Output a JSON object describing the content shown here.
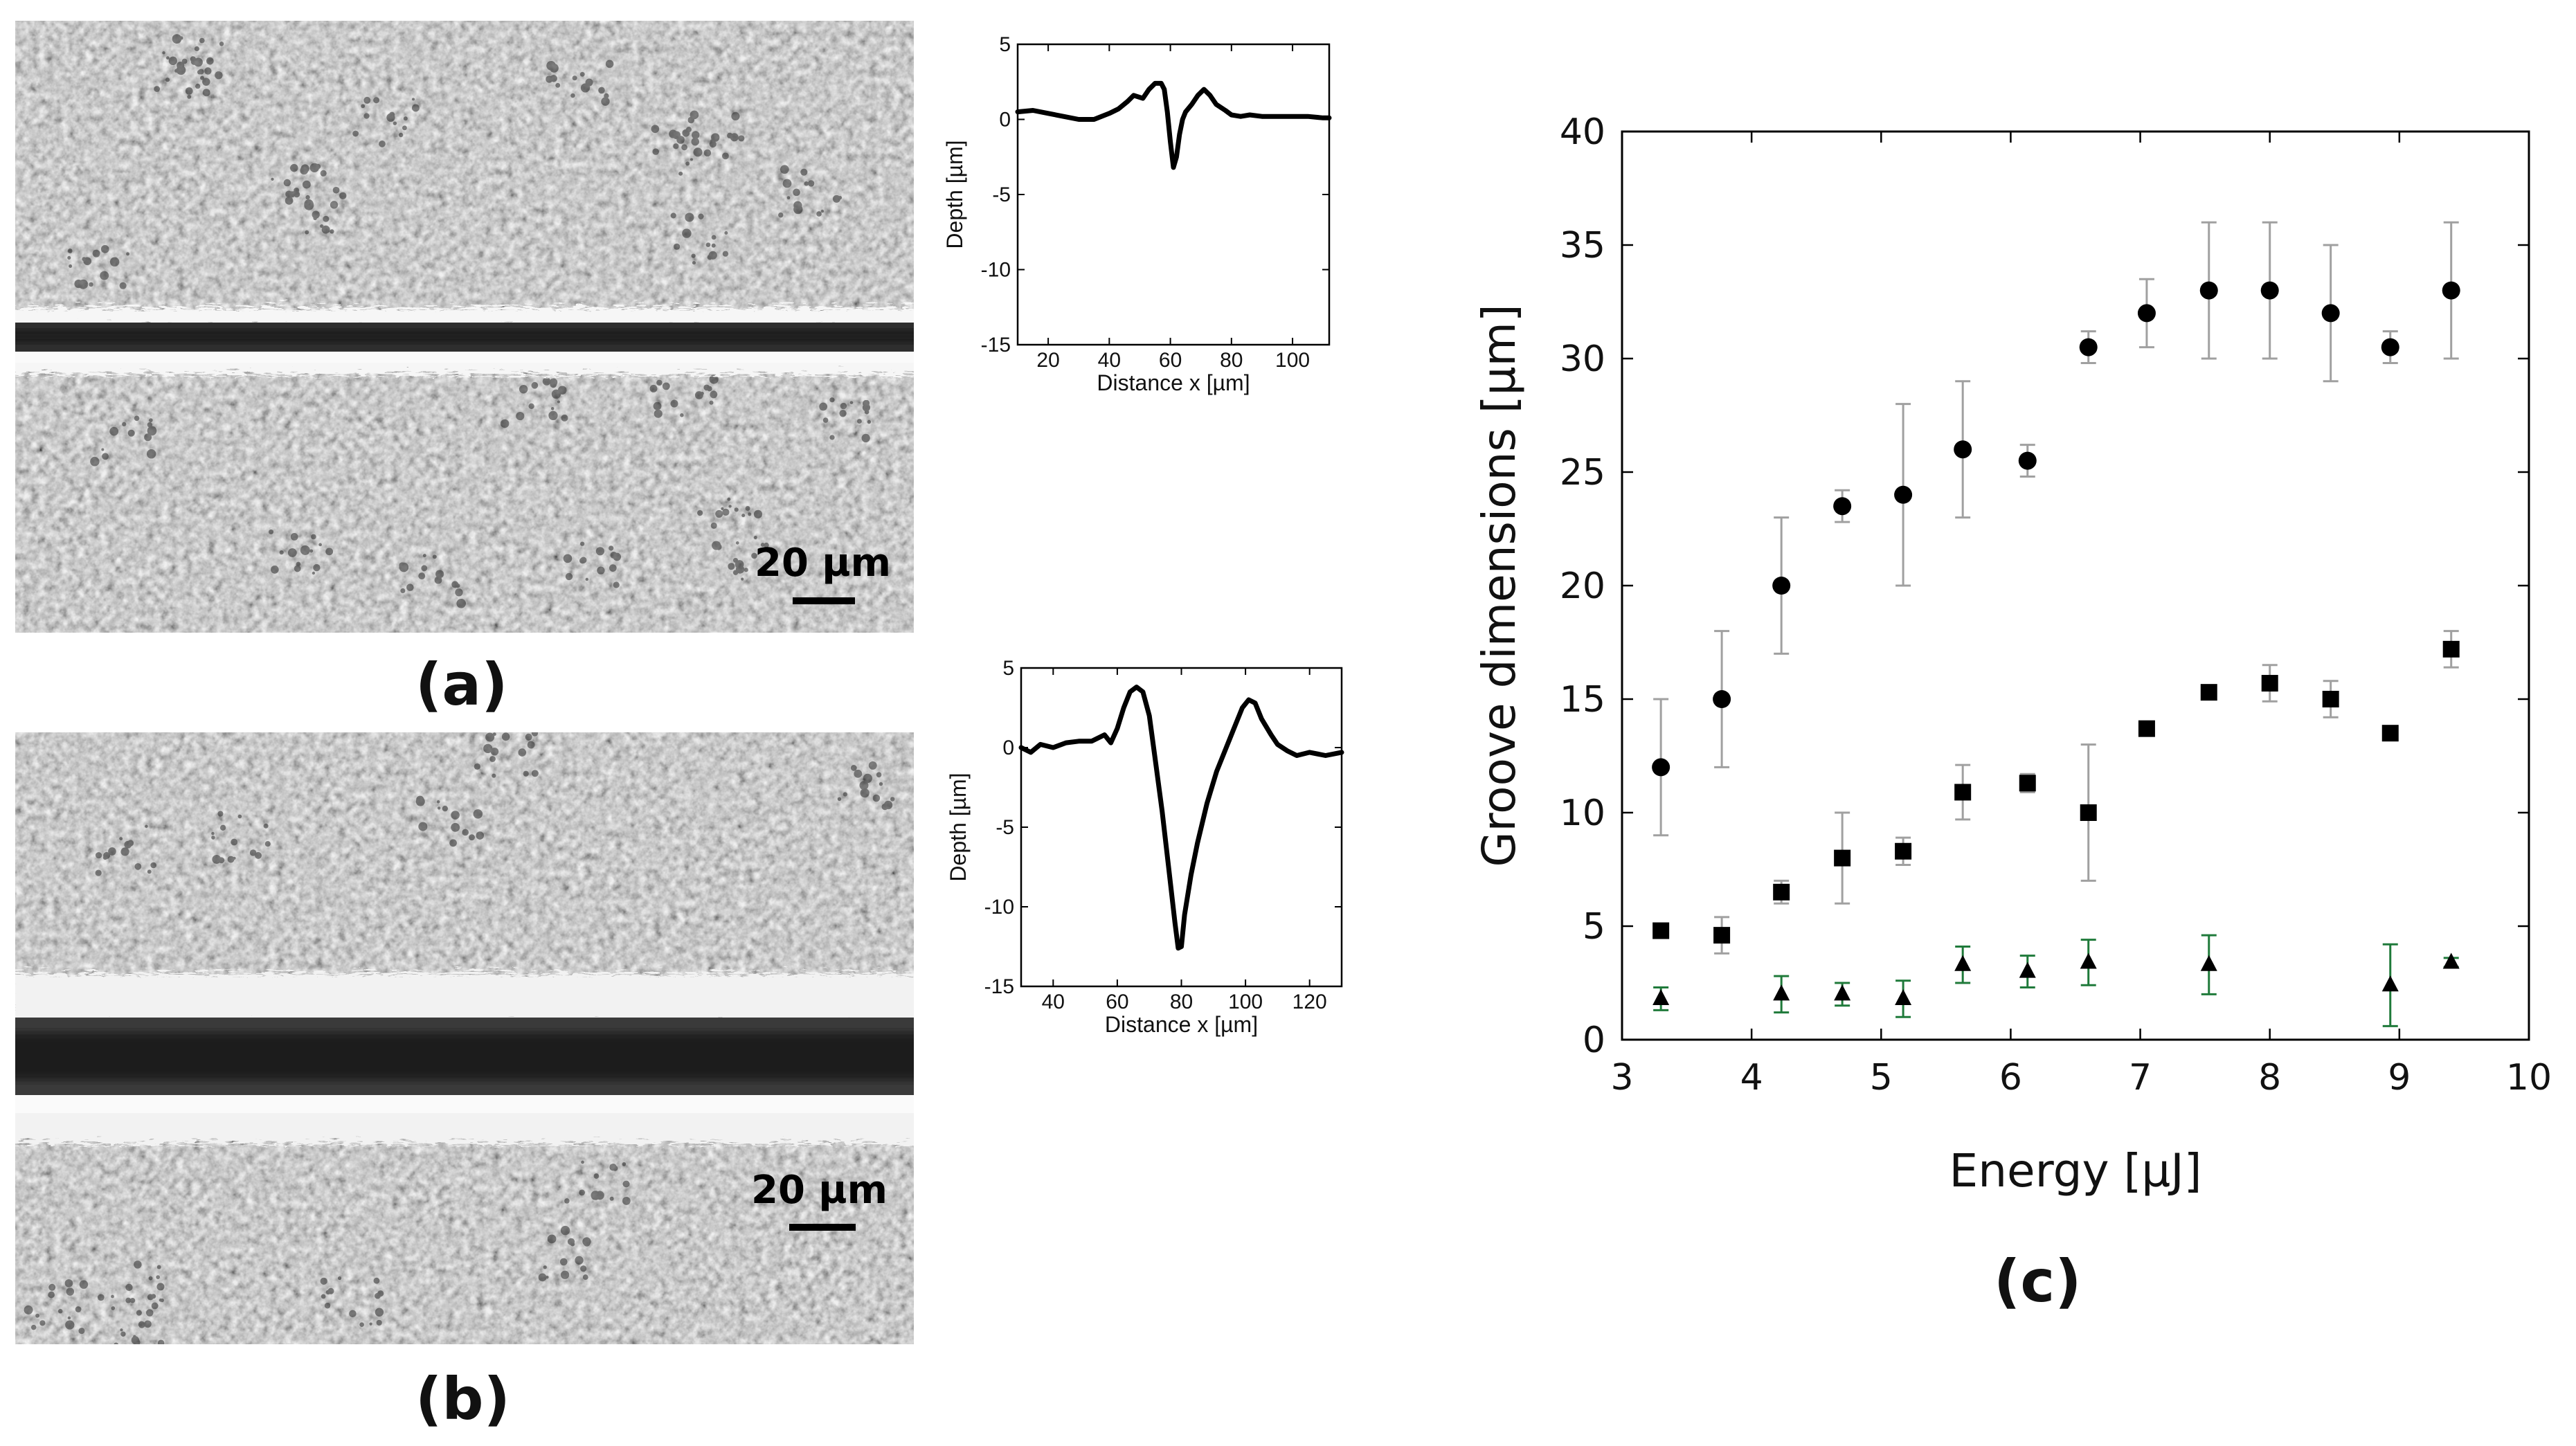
{
  "panels": {
    "a": {
      "label": "(a)",
      "scale_bar": "20 µm",
      "profile": {
        "type": "line",
        "xlabel": "Distance x [µm]",
        "ylabel": "Depth [µm]",
        "xlim": [
          10,
          112
        ],
        "ylim": [
          -15,
          5
        ],
        "xticks": [
          20,
          40,
          60,
          80,
          100
        ],
        "yticks": [
          5,
          0,
          -5,
          -10,
          -15
        ],
        "x": [
          10,
          15,
          20,
          25,
          30,
          35,
          40,
          43,
          46,
          48,
          51,
          53,
          55,
          57,
          58,
          59,
          60,
          61,
          62,
          63,
          64,
          65,
          67,
          69,
          71,
          73,
          75,
          78,
          80,
          83,
          86,
          90,
          95,
          100,
          105,
          110,
          112
        ],
        "y": [
          0.5,
          0.6,
          0.4,
          0.2,
          0.0,
          0.0,
          0.4,
          0.7,
          1.2,
          1.6,
          1.4,
          2.0,
          2.4,
          2.4,
          2.0,
          0.5,
          -1.5,
          -3.2,
          -2.5,
          -1.0,
          0.0,
          0.5,
          1.0,
          1.6,
          2.0,
          1.6,
          1.0,
          0.6,
          0.3,
          0.2,
          0.3,
          0.2,
          0.2,
          0.2,
          0.2,
          0.1,
          0.1
        ]
      }
    },
    "b": {
      "label": "(b)",
      "scale_bar": "20 µm",
      "profile": {
        "type": "line",
        "xlabel": "Distance x [µm]",
        "ylabel": "Depth [µm]",
        "xlim": [
          30,
          130
        ],
        "ylim": [
          -15,
          5
        ],
        "xticks": [
          40,
          60,
          80,
          100,
          120
        ],
        "yticks": [
          5,
          0,
          -5,
          -10,
          -15
        ],
        "x": [
          30,
          33,
          36,
          40,
          44,
          48,
          52,
          56,
          58,
          60,
          62,
          64,
          66,
          68,
          70,
          72,
          74,
          76,
          78,
          79,
          80,
          81,
          83,
          85,
          88,
          91,
          94,
          97,
          99,
          101,
          103,
          105,
          108,
          110,
          113,
          116,
          120,
          125,
          130
        ],
        "y": [
          0.0,
          -0.3,
          0.2,
          0.0,
          0.3,
          0.4,
          0.4,
          0.8,
          0.3,
          1.2,
          2.5,
          3.5,
          3.8,
          3.5,
          2.0,
          -1.0,
          -4.0,
          -7.5,
          -11.0,
          -12.6,
          -12.5,
          -10.5,
          -8.0,
          -6.0,
          -3.5,
          -1.5,
          0.0,
          1.5,
          2.5,
          3.0,
          2.8,
          1.8,
          0.8,
          0.2,
          -0.2,
          -0.5,
          -0.3,
          -0.5,
          -0.3
        ]
      }
    },
    "c": {
      "label": "(c)",
      "chart_data": {
        "type": "scatter",
        "xlabel": "Energy [µJ]",
        "ylabel": "Groove dimensions [µm]",
        "xlim": [
          3,
          10
        ],
        "ylim": [
          0,
          40
        ],
        "xticks": [
          3,
          4,
          5,
          6,
          7,
          8,
          9,
          10
        ],
        "yticks": [
          0,
          5,
          10,
          15,
          20,
          25,
          30,
          35,
          40
        ],
        "series": [
          {
            "marker": "circle",
            "color": "#000000",
            "error_color": "#a0a0a0",
            "x": [
              3.3,
              3.77,
              4.23,
              4.7,
              5.17,
              5.63,
              6.13,
              6.6,
              7.05,
              7.53,
              8.0,
              8.47,
              8.93,
              9.4
            ],
            "y": [
              12.0,
              15.0,
              20.0,
              23.5,
              24.0,
              26.0,
              25.5,
              30.5,
              32.0,
              33.0,
              33.0,
              32.0,
              30.5,
              33.0
            ],
            "err": [
              3.0,
              3.0,
              3.0,
              0.7,
              4.0,
              3.0,
              0.7,
              0.7,
              1.5,
              3.0,
              3.0,
              3.0,
              0.7,
              3.0
            ]
          },
          {
            "marker": "square",
            "color": "#000000",
            "error_color": "#a0a0a0",
            "x": [
              3.3,
              3.77,
              4.23,
              4.7,
              5.17,
              5.63,
              6.13,
              6.6,
              7.05,
              7.53,
              8.0,
              8.47,
              8.93,
              9.4
            ],
            "y": [
              4.8,
              4.6,
              6.5,
              8.0,
              8.3,
              10.9,
              11.3,
              10.0,
              13.7,
              15.3,
              15.7,
              15.0,
              13.5,
              17.2
            ],
            "err": [
              0.3,
              0.8,
              0.5,
              2.0,
              0.6,
              1.2,
              0.4,
              3.0,
              0.3,
              0.3,
              0.8,
              0.8,
              0.3,
              0.8
            ]
          },
          {
            "marker": "triangle",
            "color": "#000000",
            "error_color": "#1f7a3a",
            "x": [
              3.3,
              4.23,
              4.7,
              5.17,
              5.63,
              6.13,
              6.6,
              7.53,
              8.93,
              9.4
            ],
            "y": [
              1.8,
              2.0,
              2.0,
              1.8,
              3.3,
              3.0,
              3.4,
              3.3,
              2.4,
              3.4
            ],
            "err": [
              0.5,
              0.8,
              0.5,
              0.8,
              0.8,
              0.7,
              1.0,
              1.3,
              1.8,
              0.2
            ]
          }
        ]
      }
    }
  }
}
